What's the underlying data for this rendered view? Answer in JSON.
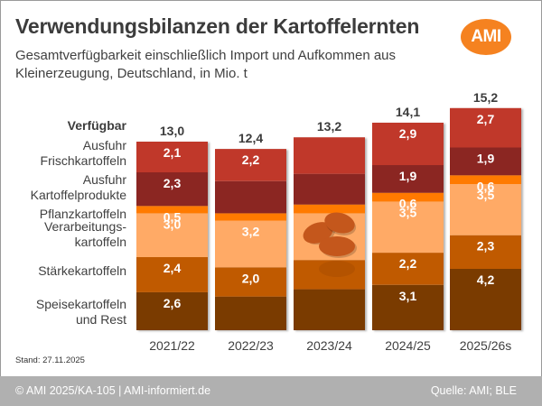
{
  "header": {
    "title": "Verwendungsbilanzen der Kartoffelernten",
    "subtitle_line1": "Gesamtverfügbarkeit einschließlich Import und Aufkommen aus",
    "subtitle_line2": "Kleinerzeugung, Deutschland, in Mio. t",
    "logo_text": "AMI",
    "logo_color": "#f58220"
  },
  "footer": {
    "stand": "Stand: 27.11.2025",
    "copyright": "© AMI 2025/KA-105 | AMI-informiert.de",
    "source": "Quelle: AMI; BLE"
  },
  "chart_data": {
    "type": "bar",
    "stacked": true,
    "title": "Verwendungsbilanzen der Kartoffelernten",
    "unit": "Mio. t",
    "total_label": "Verfügbar",
    "categories": [
      "2021/22",
      "2022/23",
      "2023/24",
      "2024/25",
      "2025/26s"
    ],
    "totals": [
      "13,0",
      "12,4",
      "13,2",
      "14,1",
      "15,2"
    ],
    "series": [
      {
        "name": "Speisekartoffeln und Rest",
        "label_lines": [
          "Speisekartoffeln",
          "und Rest"
        ],
        "color": "#7a3b00",
        "values": [
          2.6,
          2.3,
          2.8,
          3.1,
          4.2
        ],
        "labels": [
          "2,6",
          "",
          "",
          "3,1",
          "4,2"
        ]
      },
      {
        "name": "Stärkekartoffeln",
        "label_lines": [
          "Stärkekartoffeln"
        ],
        "color": "#c05a00",
        "values": [
          2.4,
          2.0,
          2.0,
          2.2,
          2.3
        ],
        "labels": [
          "2,4",
          "2,0",
          "",
          "2,2",
          "2,3"
        ]
      },
      {
        "name": "Verarbeitungskartoffeln",
        "label_lines": [
          "Verarbeitungs-",
          "kartoffeln"
        ],
        "color": "#ffaa66",
        "values": [
          3.0,
          3.2,
          3.2,
          3.5,
          3.5
        ],
        "labels": [
          "3,0",
          "3,2",
          "",
          "3,5",
          "3,5"
        ]
      },
      {
        "name": "Pflanzkartoffeln",
        "label_lines": [
          "Pflanzkartoffeln"
        ],
        "color": "#ff7a00",
        "values": [
          0.5,
          0.5,
          0.6,
          0.6,
          0.6
        ],
        "labels": [
          "0,5",
          "",
          "",
          "0,6",
          "0,6"
        ]
      },
      {
        "name": "Ausfuhr Kartoffelprodukte",
        "label_lines": [
          "Ausfuhr",
          "Kartoffelprodukte"
        ],
        "color": "#8b2820",
        "values": [
          2.3,
          2.2,
          2.1,
          1.9,
          1.9
        ],
        "labels": [
          "2,3",
          "",
          "",
          "1,9",
          "1,9"
        ]
      },
      {
        "name": "Ausfuhr Frischkartoffeln",
        "label_lines": [
          "Ausfuhr",
          "Frischkartoffeln"
        ],
        "color": "#c0392b",
        "values": [
          2.1,
          2.2,
          2.5,
          2.9,
          2.7
        ],
        "labels": [
          "2,1",
          "2,2",
          "",
          "2,9",
          "2,7"
        ]
      }
    ],
    "ylim": [
      0,
      15.2
    ],
    "grid": false,
    "legend": "left",
    "annotation": "potato illustration on 2023/24 bar"
  }
}
